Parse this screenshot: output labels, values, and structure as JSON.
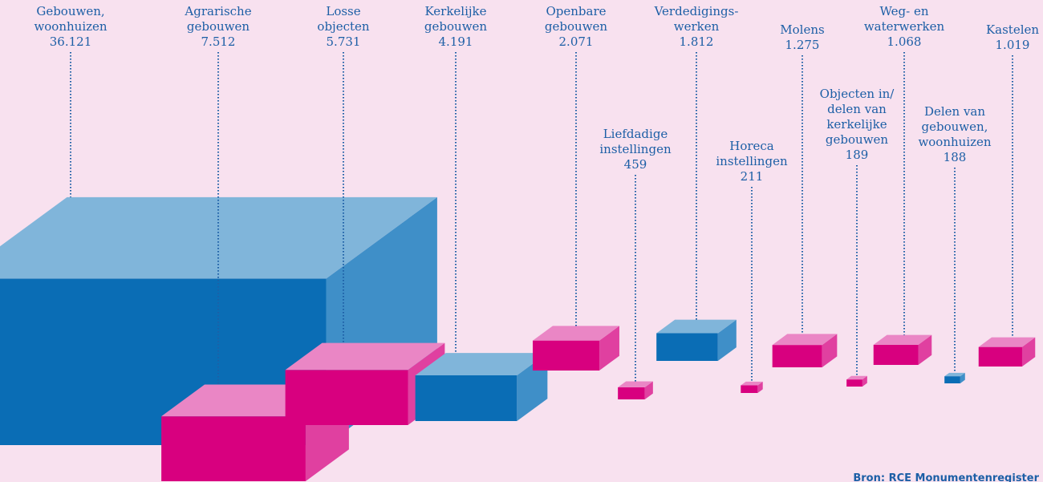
{
  "chart_data": {
    "type": "block",
    "categories": [
      "Gebouwen,\nwoonhuizen",
      "Agrarische\ngebouwen",
      "Losse\nobjecten",
      "Kerkelijke\ngebouwen",
      "Openbare\ngebouwen",
      "Liefdadige\ninstellingen",
      "Verdedigings-\nwerken",
      "Horeca\ninstellingen",
      "Molens",
      "Objecten in/\ndelen van\nkerkelijke\ngebouwen",
      "Weg- en\nwaterwerken",
      "Delen van\ngebouwen,\nwoonhuizen",
      "Kastelen"
    ],
    "values": [
      36121,
      7512,
      5731,
      4191,
      2071,
      459,
      1812,
      211,
      1275,
      189,
      1068,
      188,
      1019
    ],
    "value_labels": [
      "36.121",
      "7.512",
      "5.731",
      "4.191",
      "2.071",
      "459",
      "1.812",
      "211",
      "1.275",
      "189",
      "1.068",
      "188",
      "1.019"
    ],
    "colors": [
      "#0a6db5",
      "#d8007f",
      "#d8007f",
      "#0a6db5",
      "#d8007f",
      "#d8007f",
      "#0a6db5",
      "#d8007f",
      "#d8007f",
      "#d8007f",
      "#d8007f",
      "#0a6db5",
      "#d8007f"
    ],
    "source": "Bron: RCE Monumentenregister"
  }
}
